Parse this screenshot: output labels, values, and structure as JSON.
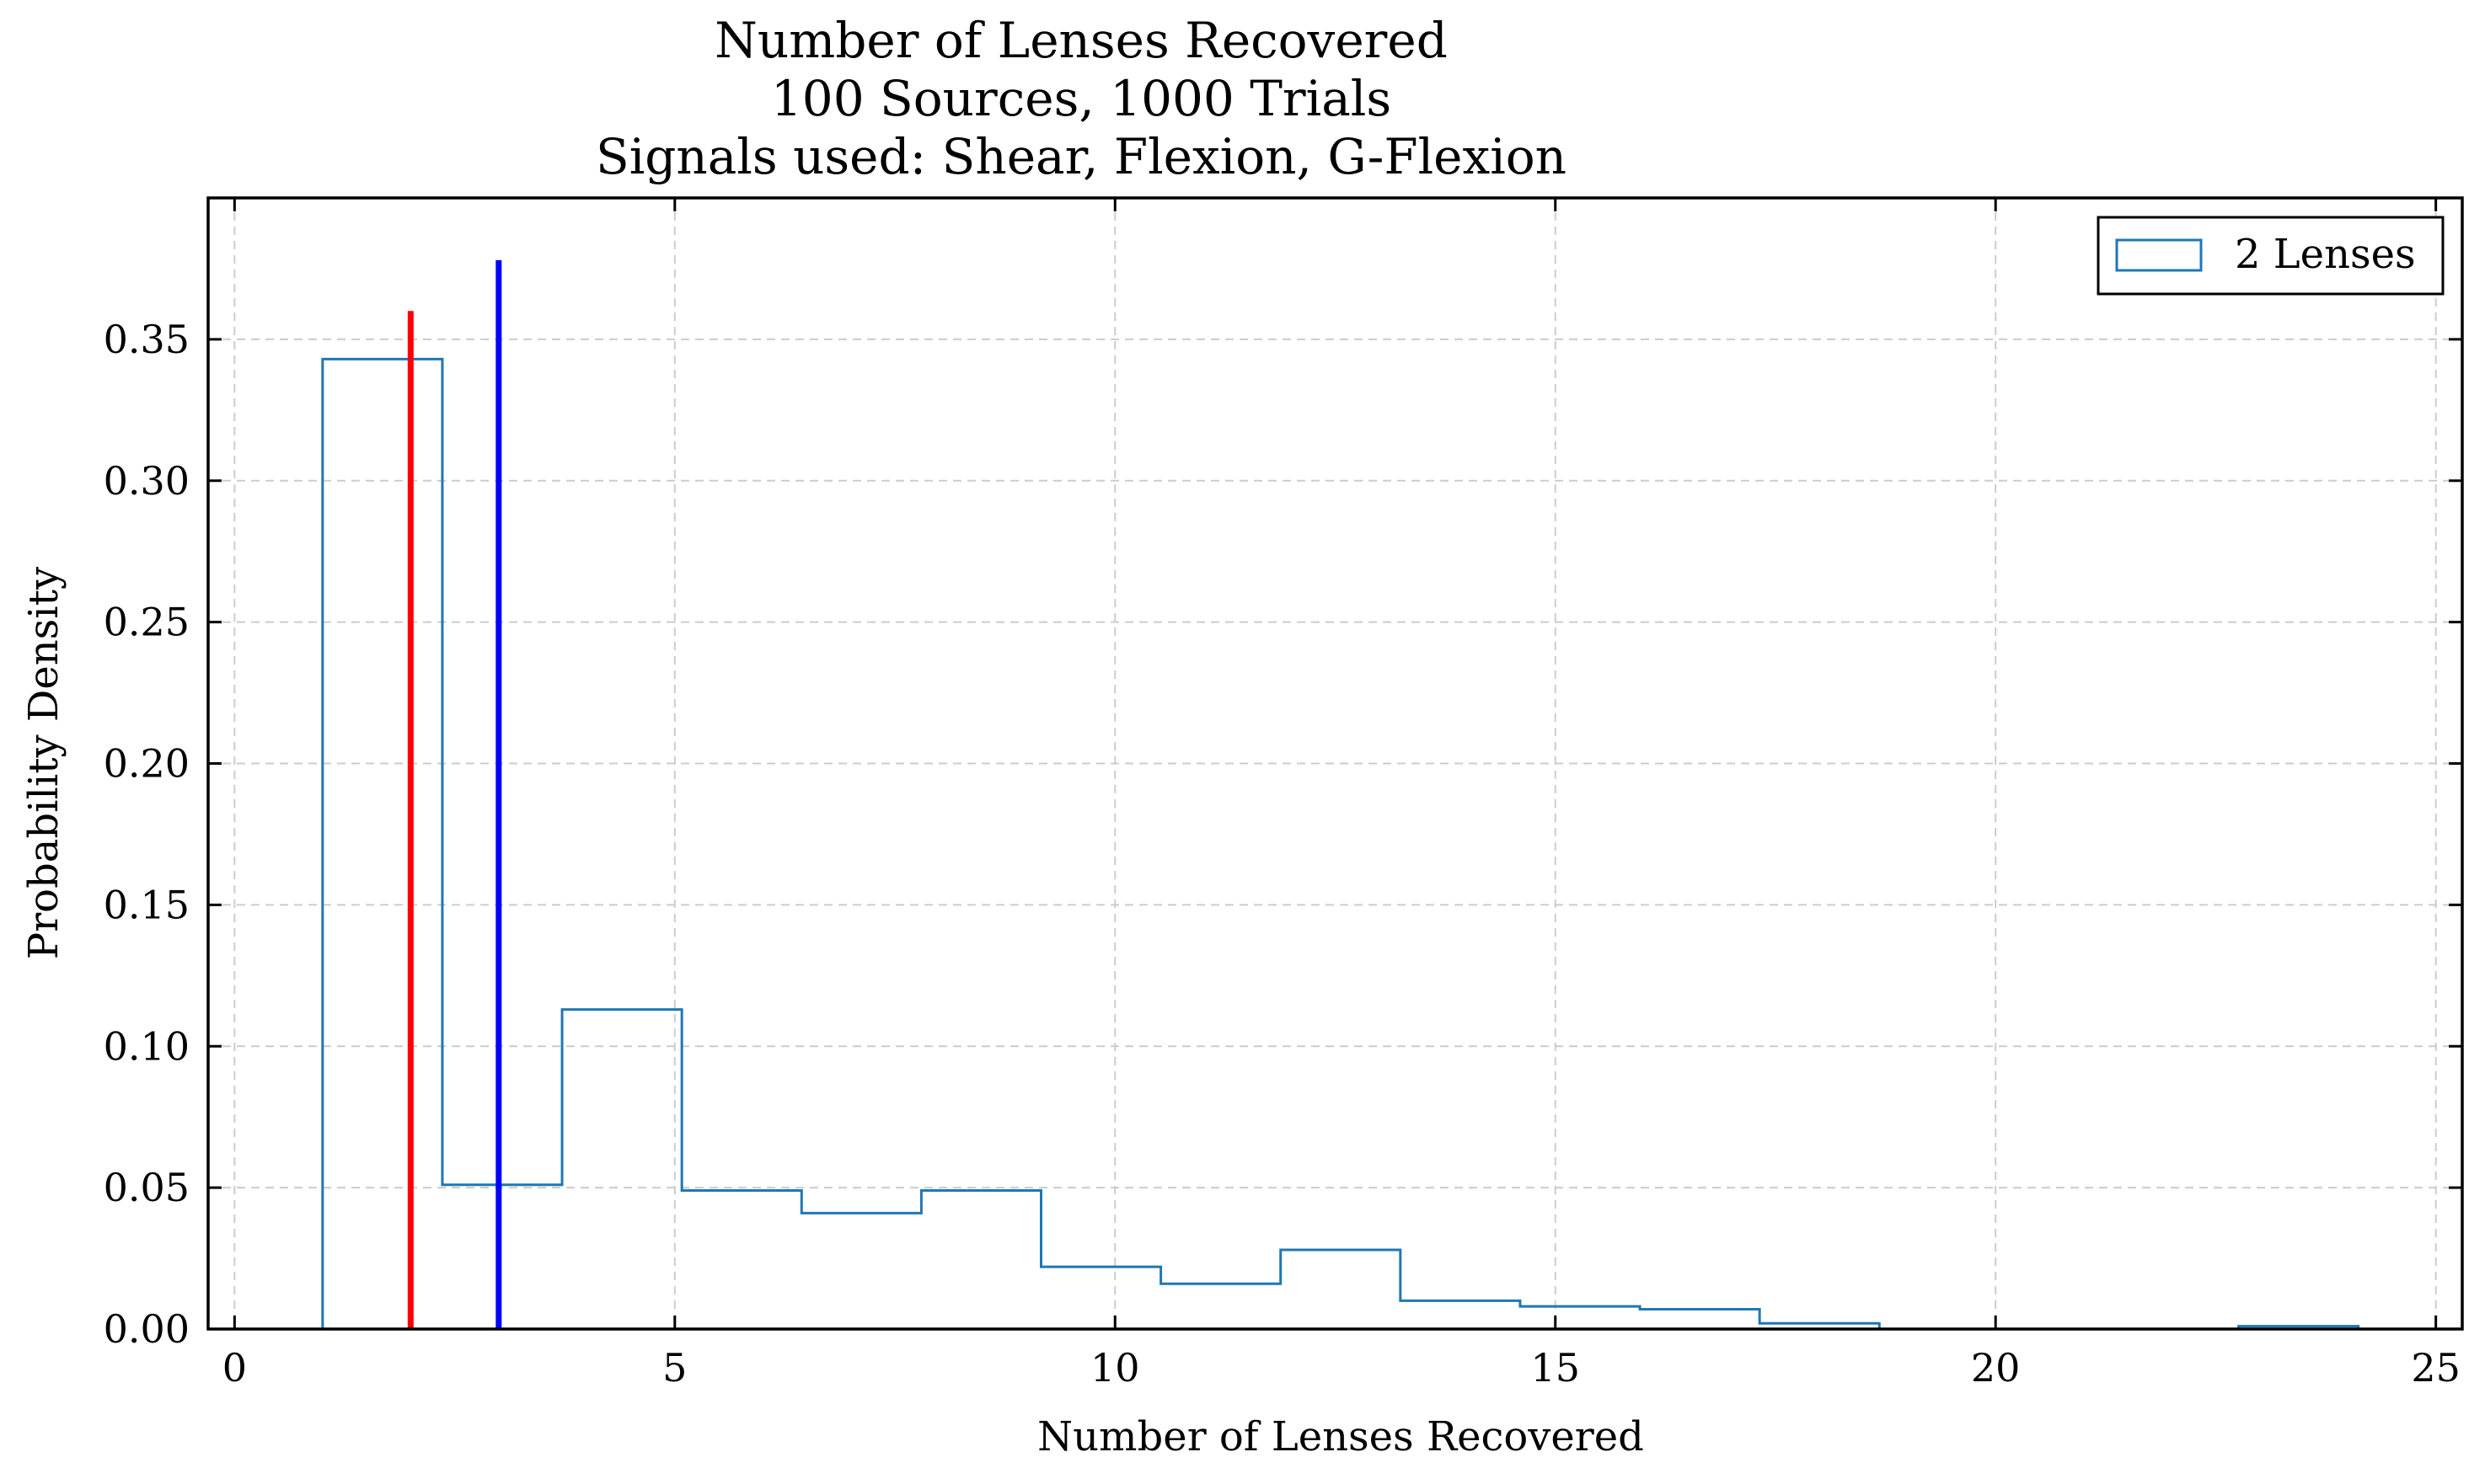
{
  "chart_data": {
    "type": "histogram",
    "title_lines": [
      "Number of Lenses Recovered",
      "100 Sources, 1000 Trials",
      "Signals used: Shear, Flexion, G-Flexion"
    ],
    "xlabel": "Number of Lenses Recovered",
    "ylabel": "Probability Density",
    "xlim": [
      -0.3,
      25.3
    ],
    "ylim": [
      0,
      0.4
    ],
    "x_ticks": [
      0,
      5,
      10,
      15,
      20,
      25
    ],
    "x_tick_labels": [
      "0",
      "5",
      "10",
      "15",
      "20",
      "25"
    ],
    "y_ticks": [
      0,
      0.05,
      0.1,
      0.15,
      0.2,
      0.25,
      0.3,
      0.35
    ],
    "y_tick_labels": [
      "0.00",
      "0.05",
      "0.10",
      "0.15",
      "0.20",
      "0.25",
      "0.30",
      "0.35"
    ],
    "grid": true,
    "legend_position": "top-right",
    "series": [
      {
        "name": "2 Lenses",
        "color": "#1f77b4",
        "histtype": "step",
        "bin_edges": [
          1.0,
          2.36,
          3.72,
          5.08,
          6.44,
          7.8,
          9.16,
          10.52,
          11.88,
          13.24,
          14.6,
          15.96,
          17.32,
          18.68,
          20.04,
          21.4,
          22.76,
          24.12
        ],
        "values": [
          0.343,
          0.051,
          0.113,
          0.049,
          0.041,
          0.049,
          0.022,
          0.016,
          0.028,
          0.01,
          0.008,
          0.007,
          0.002,
          0.0,
          0.0,
          0.0,
          0.001
        ]
      }
    ],
    "vlines": [
      {
        "x": 2.0,
        "ymax": 0.36,
        "color": "#ff0000"
      },
      {
        "x": 3.0,
        "ymax": 0.378,
        "color": "#0000ff"
      }
    ]
  }
}
